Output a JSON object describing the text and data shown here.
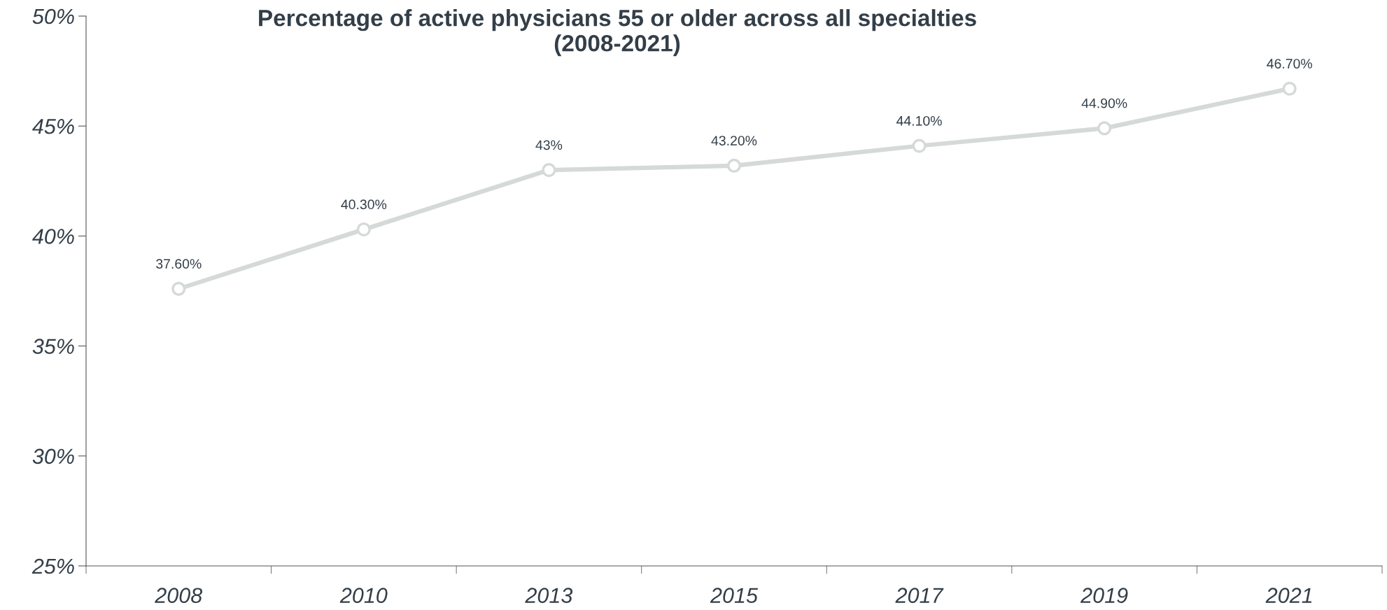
{
  "chart_data": {
    "type": "line",
    "title": "Percentage of active physicians 55 or older across all specialties\n(2008-2021)",
    "categories": [
      "2008",
      "2010",
      "2013",
      "2015",
      "2017",
      "2019",
      "2021"
    ],
    "series": [
      {
        "color": "#d5d9d7",
        "values": [
          37.6,
          40.3,
          43,
          43.2,
          44.1,
          44.9,
          46.7
        ],
        "value_labels": [
          "37.60%",
          "40.30%",
          "43%",
          "43.20%",
          "44.10%",
          "44.90%",
          "46.70%"
        ]
      }
    ],
    "ylim": [
      25,
      50
    ],
    "yticks": [
      {
        "value": 25,
        "label": "25%"
      },
      {
        "value": 30,
        "label": "30%"
      },
      {
        "value": 35,
        "label": "35%"
      },
      {
        "value": 40,
        "label": "40%"
      },
      {
        "value": 45,
        "label": "45%"
      },
      {
        "value": 50,
        "label": "50%"
      }
    ],
    "marker": "circle",
    "grid": false,
    "legend": false
  }
}
